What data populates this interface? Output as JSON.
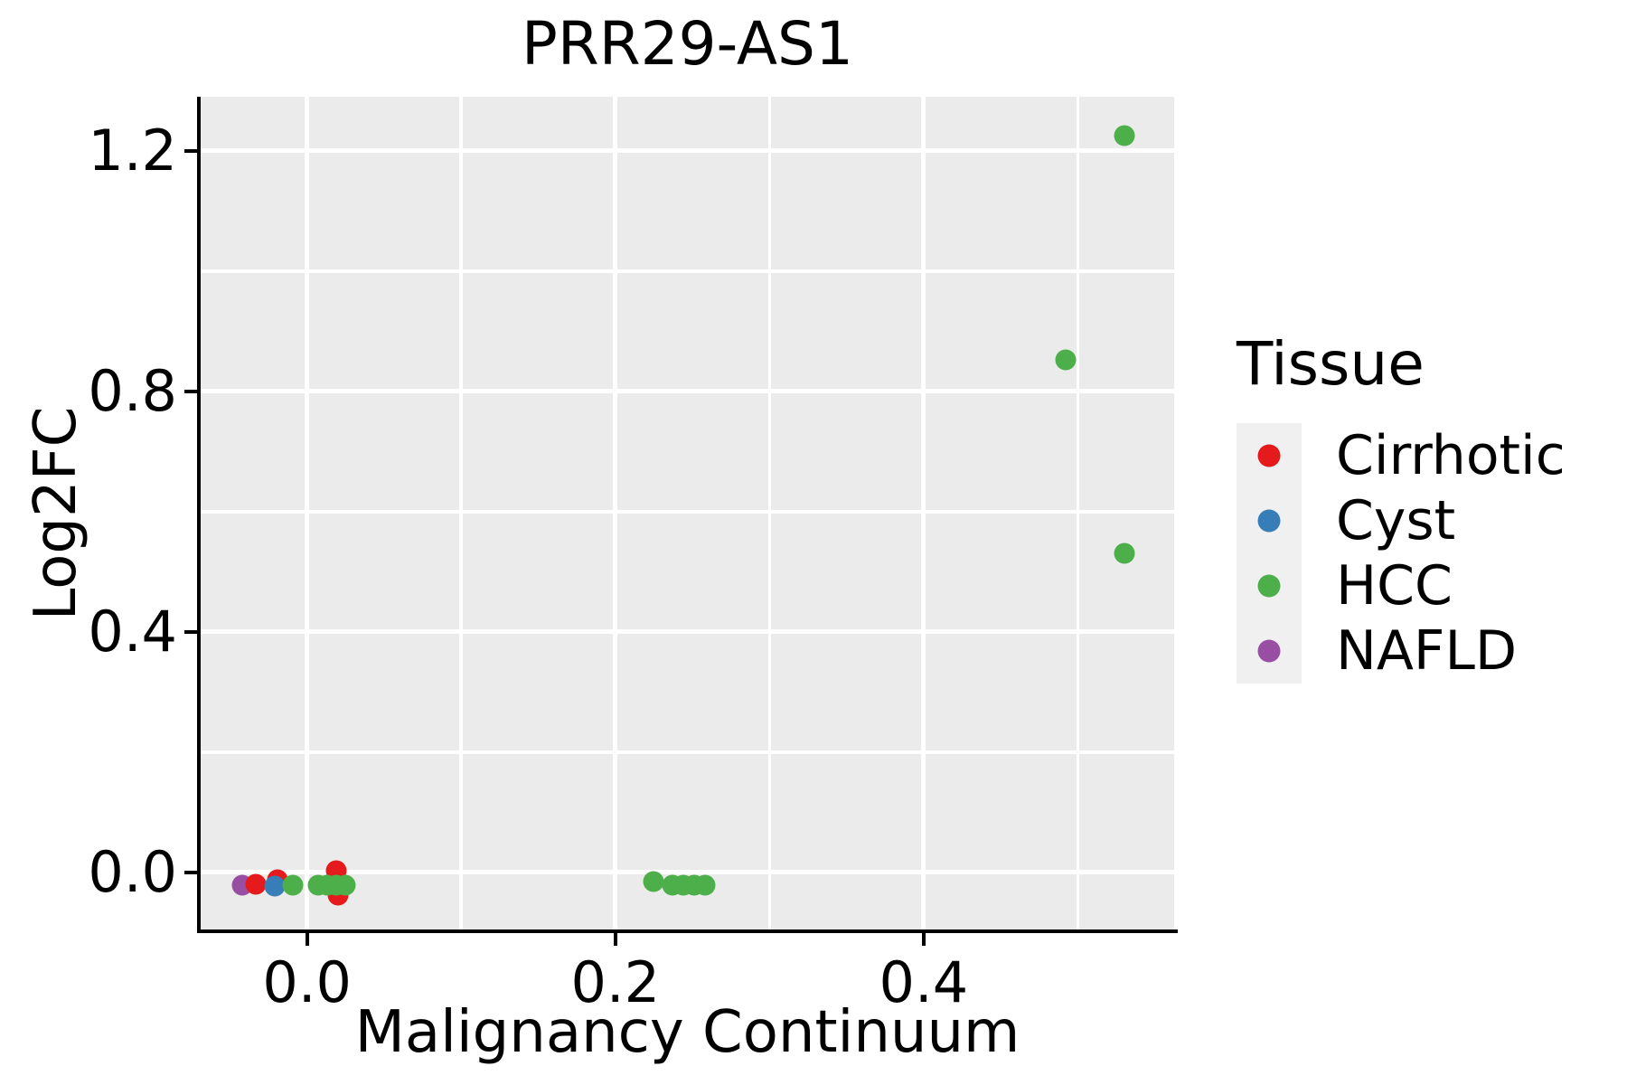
{
  "title": "PRR29-AS1",
  "axes": {
    "x": {
      "label": "Malignancy Continuum",
      "tick_labels": [
        "0.0",
        "0.2",
        "0.4"
      ],
      "tick_values": [
        0.0,
        0.2,
        0.4
      ],
      "minor_values": [
        0.1,
        0.3,
        0.5
      ]
    },
    "y": {
      "label": "Log2FC",
      "tick_labels": [
        "0.0",
        "0.4",
        "0.8",
        "1.2"
      ],
      "tick_values": [
        0.0,
        0.4,
        0.8,
        1.2
      ],
      "minor_values": [
        0.2,
        0.6,
        1.0
      ]
    }
  },
  "legend": {
    "title": "Tissue",
    "entries": [
      {
        "label": "Cirrhotic",
        "color": "#E41A1C"
      },
      {
        "label": "Cyst",
        "color": "#377EB8"
      },
      {
        "label": "HCC",
        "color": "#4DAF4A"
      },
      {
        "label": "NAFLD",
        "color": "#984EA3"
      }
    ]
  },
  "style": {
    "panel_bg": "#EBEBEB",
    "grid_color": "#FFFFFF",
    "axis_color": "#000000",
    "legend_key_bg": "#F0F0F0",
    "text_color": "#000000"
  },
  "chart_data": {
    "type": "scatter",
    "title": "PRR29-AS1",
    "xlabel": "Malignancy Continuum",
    "ylabel": "Log2FC",
    "xlim": [
      -0.069,
      0.5625
    ],
    "ylim": [
      -0.095,
      1.29
    ],
    "grid": "white major+minor gridlines on gray panel",
    "legend_position": "right",
    "series": [
      {
        "name": "Cirrhotic",
        "color": "#E41A1C",
        "points": [
          [
            -0.033,
            -0.02
          ],
          [
            -0.019,
            -0.012
          ],
          [
            0.019,
            0.002
          ],
          [
            0.02,
            -0.038
          ]
        ]
      },
      {
        "name": "Cyst",
        "color": "#377EB8",
        "points": [
          [
            -0.021,
            -0.023
          ]
        ]
      },
      {
        "name": "HCC",
        "color": "#4DAF4A",
        "points": [
          [
            -0.009,
            -0.022
          ],
          [
            0.007,
            -0.022
          ],
          [
            0.013,
            -0.022
          ],
          [
            0.019,
            -0.022
          ],
          [
            0.025,
            -0.022
          ],
          [
            0.225,
            -0.015
          ],
          [
            0.237,
            -0.022
          ],
          [
            0.244,
            -0.022
          ],
          [
            0.251,
            -0.022
          ],
          [
            0.258,
            -0.022
          ],
          [
            0.492,
            0.853
          ],
          [
            0.53,
            0.53
          ],
          [
            0.53,
            1.225
          ]
        ]
      },
      {
        "name": "NAFLD",
        "color": "#984EA3",
        "points": [
          [
            -0.042,
            -0.021
          ]
        ]
      }
    ]
  }
}
